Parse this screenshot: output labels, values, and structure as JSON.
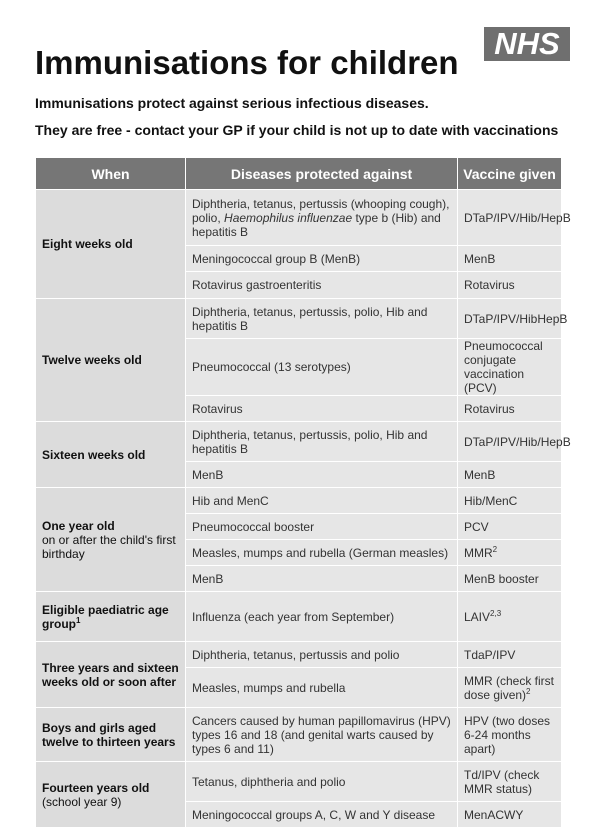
{
  "header": {
    "logo": "NHS",
    "title": "Immunisations for children",
    "subtitle1": "Immunisations protect against serious infectious diseases.",
    "subtitle2": "They are free - contact your GP if your child is not up to date with vaccinations"
  },
  "table": {
    "headers": [
      "When",
      "Diseases protected against",
      "Vaccine given"
    ],
    "g1": {
      "when": "Eight weeks old",
      "r1": {
        "d_pre": "Diphtheria, tetanus, pertussis (whooping cough), polio, ",
        "d_ital": "Haemophilus influenzae",
        "d_post": " type b (Hib) and hepatitis B",
        "v": "DTaP/IPV/Hib/HepB"
      },
      "r2": {
        "d": "Meningococcal group B (MenB)",
        "v": "MenB"
      },
      "r3": {
        "d": "Rotavirus gastroenteritis",
        "v": "Rotavirus"
      }
    },
    "g2": {
      "when": "Twelve weeks old",
      "r1": {
        "d": "Diphtheria, tetanus, pertussis, polio, Hib and hepatitis B",
        "v": "DTaP/IPV/HibHepB"
      },
      "r2": {
        "d": "Pneumococcal (13 serotypes)",
        "v": "Pneumococcal conjugate vaccination (PCV)"
      },
      "r3": {
        "d": "Rotavirus",
        "v": "Rotavirus"
      }
    },
    "g3": {
      "when": "Sixteen weeks old",
      "r1": {
        "d": "Diphtheria, tetanus, pertussis, polio, Hib and hepatitis B",
        "v": "DTaP/IPV/Hib/HepB"
      },
      "r2": {
        "d": "MenB",
        "v": "MenB"
      }
    },
    "g4": {
      "when": "One year old",
      "when_sub": "on or after the child's first birthday",
      "r1": {
        "d": "Hib and MenC",
        "v": "Hib/MenC"
      },
      "r2": {
        "d": "Pneumococcal booster",
        "v": "PCV"
      },
      "r3": {
        "d": "Measles, mumps and rubella (German measles)",
        "v": "MMR",
        "v_sup": "2"
      },
      "r4": {
        "d": "MenB",
        "v": "MenB booster"
      }
    },
    "g5": {
      "when": "Eligible paediatric age group",
      "when_sup": "1",
      "r1": {
        "d": "Influenza (each year from September)",
        "v": "LAIV",
        "v_sup": "2,3"
      }
    },
    "g6": {
      "when": "Three years and sixteen weeks old or soon after",
      "r1": {
        "d": "Diphtheria, tetanus, pertussis and polio",
        "v": "TdaP/IPV"
      },
      "r2": {
        "d": "Measles, mumps and rubella",
        "v": "MMR (check first dose given)",
        "v_sup": "2"
      }
    },
    "g7": {
      "when": "Boys and girls aged twelve to thirteen years",
      "r1": {
        "d": "Cancers caused by human papillomavirus (HPV) types 16 and 18 (and genital warts caused by types 6 and 11)",
        "v": "HPV (two doses 6-24 months apart)"
      }
    },
    "g8": {
      "when": "Fourteen years old",
      "when_sub": "(school year 9)",
      "r1": {
        "d": "Tetanus, diphtheria and polio",
        "v": "Td/IPV (check MMR status)"
      },
      "r2": {
        "d": "Meningococcal groups A, C, W and Y disease",
        "v": "MenACWY"
      }
    }
  }
}
